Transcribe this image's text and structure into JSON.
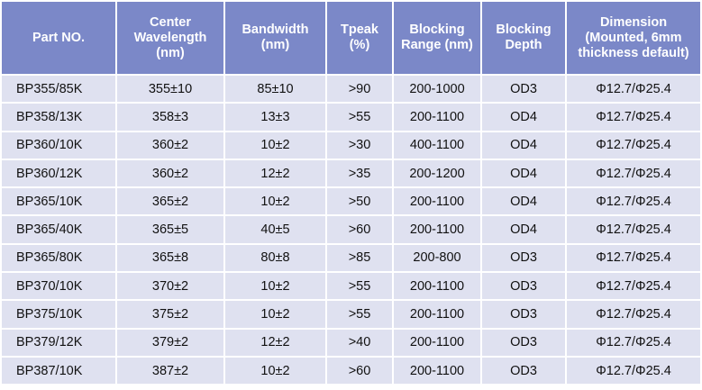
{
  "headers": [
    "Part NO.",
    "Center Wavelength (nm)",
    "Bandwidth (nm)",
    "Tpeak (%)",
    "Blocking Range (nm)",
    "Blocking Depth",
    "Dimension (Mounted, 6mm thickness default)"
  ],
  "rows": [
    [
      "BP355/85K",
      "355±10",
      "85±10",
      ">90",
      "200-1000",
      "OD3",
      "Φ12.7/Φ25.4"
    ],
    [
      "BP358/13K",
      "358±3",
      "13±3",
      ">55",
      "200-1100",
      "OD4",
      "Φ12.7/Φ25.4"
    ],
    [
      "BP360/10K",
      "360±2",
      "10±2",
      ">30",
      "400-1100",
      "OD4",
      "Φ12.7/Φ25.4"
    ],
    [
      "BP360/12K",
      "360±2",
      "12±2",
      ">35",
      "200-1200",
      "OD4",
      "Φ12.7/Φ25.4"
    ],
    [
      "BP365/10K",
      "365±2",
      "10±2",
      ">50",
      "200-1100",
      "OD4",
      "Φ12.7/Φ25.4"
    ],
    [
      "BP365/40K",
      "365±5",
      "40±5",
      ">60",
      "200-1100",
      "OD4",
      "Φ12.7/Φ25.4"
    ],
    [
      "BP365/80K",
      "365±8",
      "80±8",
      ">85",
      "200-800",
      "OD3",
      "Φ12.7/Φ25.4"
    ],
    [
      "BP370/10K",
      "370±2",
      "10±2",
      ">55",
      "200-1100",
      "OD3",
      "Φ12.7/Φ25.4"
    ],
    [
      "BP375/10K",
      "375±2",
      "10±2",
      ">55",
      "200-1100",
      "OD3",
      "Φ12.7/Φ25.4"
    ],
    [
      "BP379/12K",
      "379±2",
      "12±2",
      ">40",
      "200-1100",
      "OD3",
      "Φ12.7/Φ25.4"
    ],
    [
      "BP387/10K",
      "387±2",
      "10±2",
      ">60",
      "200-1100",
      "OD3",
      "Φ12.7/Φ25.4"
    ]
  ],
  "colors": {
    "header_bg": "#7b88c8",
    "row_bg": "#dfe1f0"
  }
}
